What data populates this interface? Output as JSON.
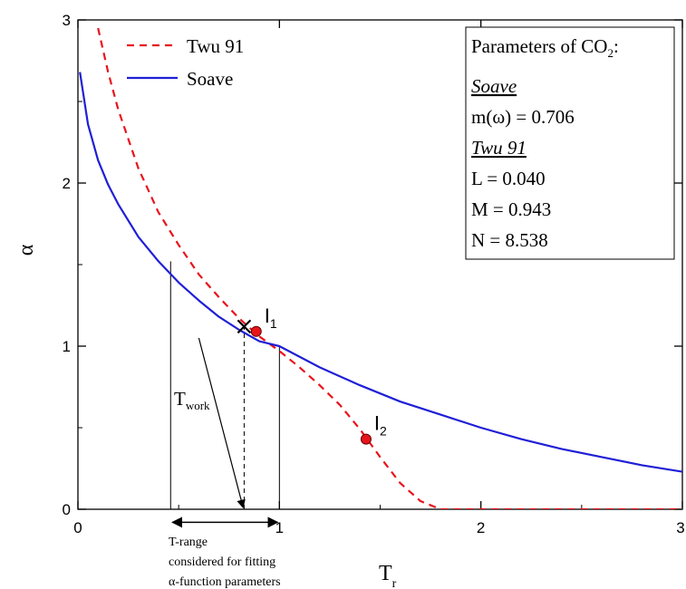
{
  "chart_data": {
    "type": "line",
    "xlabel": "T",
    "xlabel_sub": "r",
    "ylabel": "α",
    "xlim": [
      0,
      3
    ],
    "ylim": [
      0,
      3
    ],
    "xticks": [
      "0",
      "1",
      "2",
      "3"
    ],
    "yticks": [
      "0",
      "1",
      "2",
      "3"
    ],
    "grid": false,
    "legend_position": "top-left",
    "series": [
      {
        "name": "Twu 91",
        "style": "dashed",
        "color": "#e8141c",
        "x": [
          0.1,
          0.15,
          0.2,
          0.3,
          0.4,
          0.5,
          0.6,
          0.7,
          0.8,
          0.9,
          1.0,
          1.1,
          1.2,
          1.3,
          1.4,
          1.5,
          1.6,
          1.7,
          1.8,
          1.9,
          2.0,
          2.5,
          3.0
        ],
        "y": [
          2.95,
          2.68,
          2.45,
          2.09,
          1.82,
          1.62,
          1.44,
          1.3,
          1.17,
          1.06,
          0.97,
          0.87,
          0.76,
          0.64,
          0.49,
          0.32,
          0.16,
          0.05,
          0.0,
          0.0,
          0.0,
          0.0,
          0.0
        ]
      },
      {
        "name": "Soave",
        "style": "solid",
        "color": "#1f1fd6",
        "x": [
          0.01,
          0.05,
          0.1,
          0.15,
          0.2,
          0.3,
          0.4,
          0.5,
          0.6,
          0.7,
          0.8,
          0.9,
          1.0,
          1.2,
          1.4,
          1.6,
          1.8,
          2.0,
          2.2,
          2.4,
          2.6,
          2.8,
          3.0
        ],
        "y": [
          2.68,
          2.36,
          2.14,
          1.99,
          1.87,
          1.67,
          1.52,
          1.39,
          1.28,
          1.18,
          1.1,
          1.03,
          1.0,
          0.87,
          0.76,
          0.66,
          0.58,
          0.5,
          0.43,
          0.37,
          0.32,
          0.27,
          0.23
        ]
      }
    ],
    "markers": [
      {
        "name": "I",
        "sub": "1",
        "x": 0.885,
        "y": 1.09,
        "color": "#e8141c"
      },
      {
        "name": "I",
        "sub": "2",
        "x": 1.43,
        "y": 0.43,
        "color": "#e8141c"
      }
    ],
    "cross_marker": {
      "x": 0.825,
      "y": 1.12
    },
    "guide_lines": [
      {
        "x": 0.46,
        "y": 1.52,
        "style": "solid"
      },
      {
        "x": 1.0,
        "y": 1.0,
        "style": "solid"
      },
      {
        "x": 0.825,
        "y": 1.12,
        "style": "dashed"
      }
    ],
    "range_arrow": {
      "x_start": 0.46,
      "x_end": 1.0,
      "y": -0.08
    },
    "range_caption": [
      "T-range",
      "considered for fitting",
      "α-function parameters"
    ],
    "t_work_label": "T",
    "t_work_sub": "work",
    "t_work_arrow": {
      "from": [
        0.6,
        1.05
      ],
      "to": [
        0.82,
        0.01
      ]
    },
    "parameter_box": {
      "title": "Parameters of CO",
      "title_sub": "2",
      "title_suffix": ":",
      "lines": [
        {
          "text": "Soave",
          "style": "italic-underline"
        },
        {
          "text": "m(ω) = 0.706",
          "style": "normal"
        },
        {
          "text": "Twu 91",
          "style": "italic-underline"
        },
        {
          "text": "L = 0.040",
          "style": "normal"
        },
        {
          "text": "M = 0.943",
          "style": "normal"
        },
        {
          "text": "N = 8.538",
          "style": "normal"
        }
      ]
    }
  }
}
